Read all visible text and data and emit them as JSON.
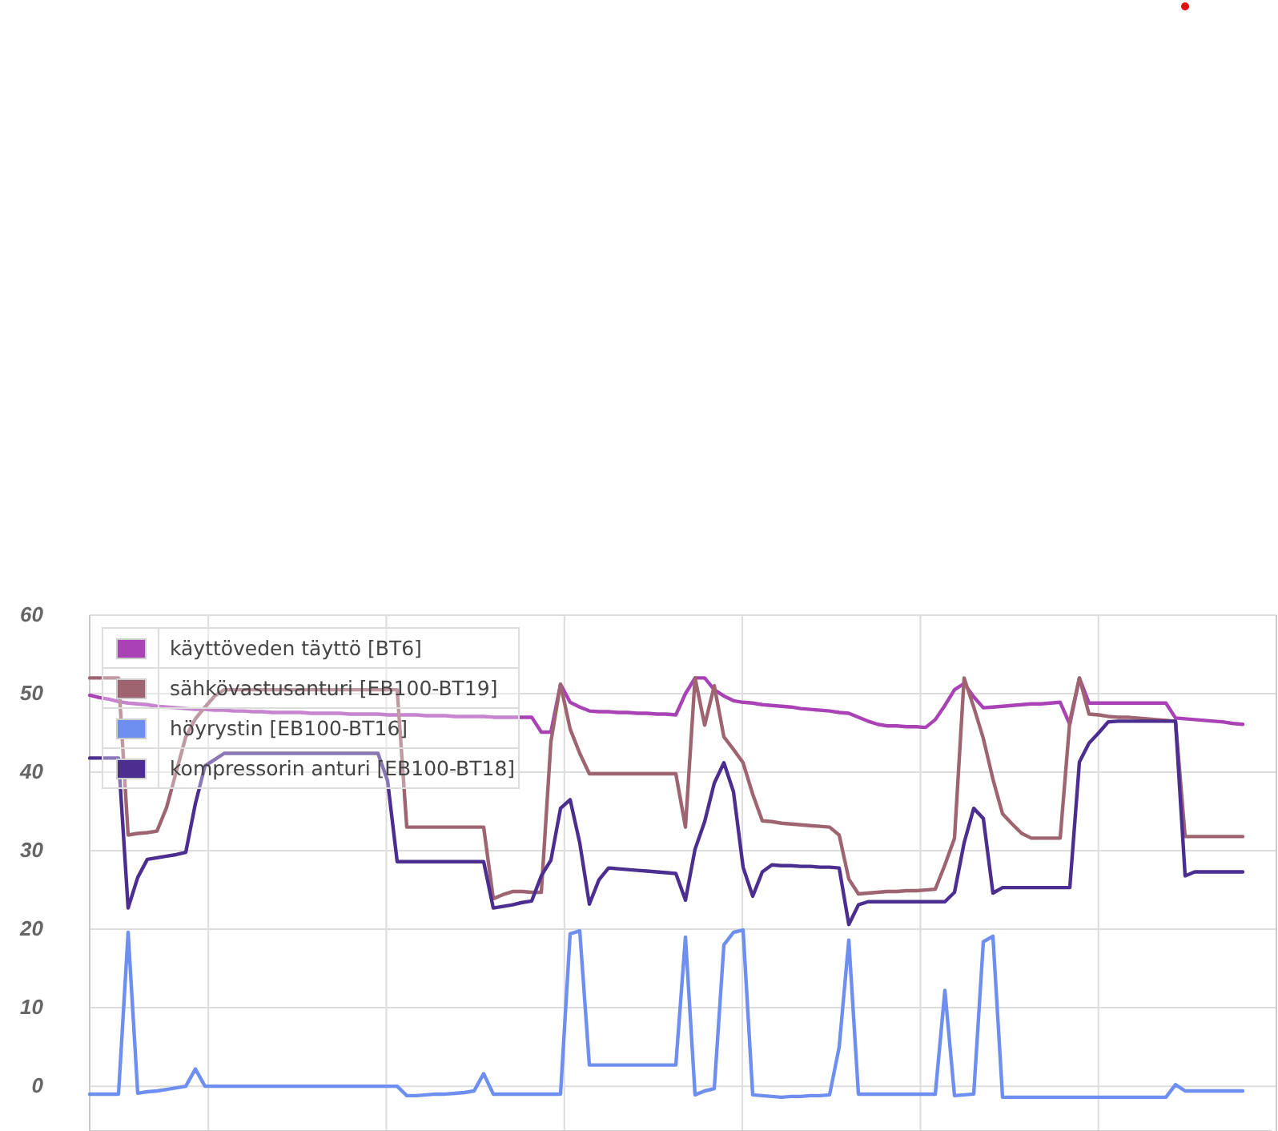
{
  "chart_data": {
    "type": "line",
    "ylim": [
      -5.7,
      60
    ],
    "categories": [
      null,
      null,
      null,
      null,
      null,
      null,
      null,
      null,
      null,
      null,
      null,
      null,
      null,
      null,
      null,
      null,
      null,
      null,
      null,
      null,
      null,
      null,
      null,
      null,
      null,
      null,
      null,
      null,
      null,
      null,
      null,
      null,
      null,
      null,
      null,
      null,
      null,
      null,
      null,
      null,
      null,
      null,
      null,
      null,
      null,
      null,
      null,
      null,
      null,
      null,
      null,
      null,
      null,
      null,
      null,
      null,
      null,
      null,
      null,
      null,
      null,
      null,
      null,
      null,
      null,
      null,
      null,
      null,
      null,
      null,
      null,
      null,
      null,
      null,
      null,
      null,
      null,
      null,
      null,
      null,
      null,
      null,
      null,
      null,
      null,
      null,
      null,
      null,
      null,
      null,
      null,
      null,
      null,
      null,
      null,
      null,
      null,
      null,
      null,
      null,
      null,
      null,
      null,
      null,
      null,
      null,
      null,
      null,
      null,
      null,
      null,
      null,
      null,
      null,
      null,
      null,
      null,
      null,
      null,
      null,
      null,
      null,
      null,
      null
    ],
    "yticks": [
      0,
      10,
      20,
      30,
      40,
      50,
      60
    ],
    "tick_labels": "y",
    "grid": true,
    "legend": "top left",
    "line_style": "solid",
    "series": [
      {
        "name": "käyttöveden täyttö [BT6]",
        "color": "#a943b5",
        "values": [
          49.8,
          49.5,
          49.3,
          49.0,
          48.8,
          48.7,
          48.6,
          48.4,
          48.3,
          48.2,
          48.1,
          48.0,
          48.0,
          47.9,
          47.9,
          47.8,
          47.8,
          47.7,
          47.7,
          47.6,
          47.6,
          47.6,
          47.6,
          47.5,
          47.5,
          47.5,
          47.5,
          47.4,
          47.4,
          47.4,
          47.4,
          47.3,
          47.3,
          47.3,
          47.3,
          47.2,
          47.2,
          47.2,
          47.1,
          47.1,
          47.1,
          47.1,
          47.0,
          47.0,
          47.0,
          47.0,
          47.0,
          45.1,
          45.1,
          51.2,
          48.9,
          48.3,
          47.8,
          47.7,
          47.7,
          47.6,
          47.6,
          47.5,
          47.5,
          47.4,
          47.4,
          47.3,
          50,
          52,
          52,
          50.5,
          49.7,
          49.1,
          48.9,
          48.8,
          48.6,
          48.5,
          48.4,
          48.3,
          48.1,
          48.0,
          47.9,
          47.8,
          47.6,
          47.5,
          47.0,
          46.5,
          46.1,
          45.9,
          45.9,
          45.8,
          45.8,
          45.7,
          46.7,
          48.5,
          50.5,
          51.3,
          49.6,
          48.2,
          48.3,
          48.4,
          48.5,
          48.6,
          48.7,
          48.7,
          48.8,
          48.9,
          46.1,
          52,
          48.8,
          48.8,
          48.8,
          48.8,
          48.8,
          48.8,
          48.8,
          48.8,
          48.8,
          46.9,
          46.8,
          46.7,
          46.6,
          46.5,
          46.4,
          46.2,
          46.1,
          null,
          null,
          null
        ]
      },
      {
        "name": "sähkövastusanturi [EB100-BT19]",
        "color": "#9e6470",
        "values": [
          52,
          52,
          52,
          52,
          32,
          32.2,
          32.3,
          32.5,
          35.5,
          40,
          44.5,
          46.8,
          48.3,
          49.7,
          50.5,
          50.5,
          50.5,
          50.5,
          50.5,
          50.5,
          50.5,
          50.5,
          50.5,
          50.5,
          50.5,
          50.5,
          50.5,
          50.5,
          50.5,
          50.5,
          50.5,
          50.5,
          50.5,
          33,
          33,
          33,
          33,
          33,
          33,
          33,
          33,
          33,
          23.9,
          24.4,
          24.8,
          24.8,
          24.7,
          24.7,
          43.9,
          51.2,
          45.5,
          42.4,
          39.8,
          39.8,
          39.8,
          39.8,
          39.8,
          39.8,
          39.8,
          39.8,
          39.8,
          39.8,
          33,
          52,
          46,
          51,
          44.5,
          42.9,
          41.2,
          37.2,
          33.8,
          33.7,
          33.5,
          33.4,
          33.3,
          33.2,
          33.1,
          33.0,
          32,
          26.4,
          24.5,
          24.6,
          24.7,
          24.8,
          24.8,
          24.9,
          24.9,
          25.0,
          25.1,
          28.2,
          31.6,
          52,
          48.3,
          44.3,
          39.1,
          34.7,
          33.4,
          32.2,
          31.6,
          31.6,
          31.6,
          31.6,
          46.5,
          52,
          47.4,
          47.3,
          47.1,
          47.0,
          47.0,
          46.9,
          46.8,
          46.7,
          46.6,
          46.5,
          31.8,
          31.8,
          31.8,
          31.8,
          31.8,
          31.8,
          31.8,
          null,
          null,
          null
        ]
      },
      {
        "name": "höyrystin [EB100-BT16]",
        "color": "#6f8ff0",
        "values": [
          -1,
          -1,
          -1,
          -1,
          19.6,
          -0.9,
          -0.7,
          -0.6,
          -0.4,
          -0.2,
          0,
          2.2,
          0,
          0,
          0,
          0,
          0,
          0,
          0,
          0,
          0,
          0,
          0,
          0,
          0,
          0,
          0,
          0,
          0,
          0,
          0,
          0,
          0,
          -1.2,
          -1.2,
          -1.1,
          -1.0,
          -1.0,
          -0.9,
          -0.8,
          -0.6,
          1.6,
          -1,
          -1,
          -1,
          -1,
          -1,
          -1,
          -1,
          -1,
          19.4,
          19.8,
          2.7,
          2.7,
          2.7,
          2.7,
          2.7,
          2.7,
          2.7,
          2.7,
          2.7,
          2.7,
          19,
          -1.1,
          -0.6,
          -0.3,
          18,
          19.6,
          19.9,
          -1.1,
          -1.2,
          -1.3,
          -1.4,
          -1.3,
          -1.3,
          -1.2,
          -1.2,
          -1.1,
          5,
          18.6,
          -1,
          -1,
          -1,
          -1,
          -1,
          -1,
          -1,
          -1,
          -1,
          12.2,
          -1.2,
          -1.1,
          -1,
          18.4,
          19.1,
          -1.4,
          -1.4,
          -1.4,
          -1.4,
          -1.4,
          -1.4,
          -1.4,
          -1.4,
          -1.4,
          -1.4,
          -1.4,
          -1.4,
          -1.4,
          -1.4,
          -1.4,
          -1.4,
          -1.4,
          -1.4,
          0.2,
          -0.6,
          -0.6,
          -0.6,
          -0.6,
          -0.6,
          -0.6,
          -0.6,
          null,
          null,
          null
        ]
      },
      {
        "name": "kompressorin anturi [EB100-BT18]",
        "color": "#4b2e8f",
        "values": [
          41.8,
          41.8,
          41.8,
          41.8,
          22.7,
          26.6,
          28.9,
          29.1,
          29.3,
          29.5,
          29.8,
          36,
          40.8,
          41.6,
          42.4,
          42.4,
          42.4,
          42.4,
          42.4,
          42.4,
          42.4,
          42.4,
          42.4,
          42.4,
          42.4,
          42.4,
          42.4,
          42.4,
          42.4,
          42.4,
          42.4,
          38.9,
          28.6,
          28.6,
          28.6,
          28.6,
          28.6,
          28.6,
          28.6,
          28.6,
          28.6,
          28.6,
          22.7,
          22.9,
          23.1,
          23.4,
          23.6,
          26.8,
          28.8,
          35.4,
          36.5,
          31,
          23.2,
          26.3,
          27.8,
          27.7,
          27.6,
          27.5,
          27.4,
          27.3,
          27.2,
          27.1,
          23.7,
          30.2,
          33.7,
          38.6,
          41.2,
          37.5,
          27.9,
          24.2,
          27.3,
          28.2,
          28.1,
          28.1,
          28.0,
          28.0,
          27.9,
          27.9,
          27.8,
          20.6,
          23.1,
          23.5,
          23.5,
          23.5,
          23.5,
          23.5,
          23.5,
          23.5,
          23.5,
          23.5,
          24.7,
          31,
          35.4,
          34.1,
          24.6,
          25.3,
          25.3,
          25.3,
          25.3,
          25.3,
          25.3,
          25.3,
          25.3,
          41.3,
          43.7,
          45,
          46.4,
          46.5,
          46.5,
          46.5,
          46.5,
          46.5,
          46.5,
          46.5,
          26.8,
          27.3,
          27.3,
          27.3,
          27.3,
          27.3,
          27.3,
          null,
          null,
          null
        ]
      }
    ]
  }
}
